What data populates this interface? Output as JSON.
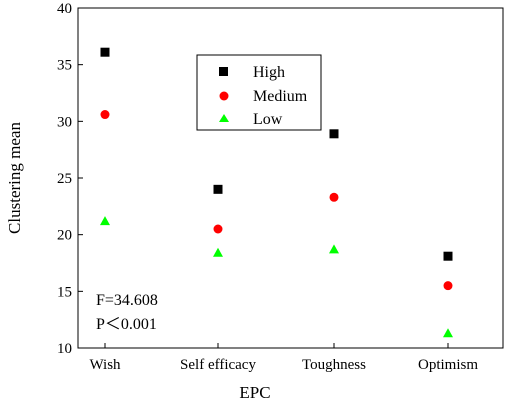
{
  "chart_data": {
    "type": "scatter",
    "xlabel": "EPC",
    "ylabel": "Clustering mean",
    "categories": [
      "Wish",
      "Self efficacy",
      "Toughness",
      "Optimism"
    ],
    "ylim": [
      10,
      40
    ],
    "yticks": [
      10,
      15,
      20,
      25,
      30,
      35,
      40
    ],
    "grid": false,
    "legend_position": "top-center",
    "series": [
      {
        "name": "High",
        "marker": "square",
        "color": "#000000",
        "values": [
          36.1,
          24.0,
          28.9,
          18.1
        ]
      },
      {
        "name": "Medium",
        "marker": "circle",
        "color": "#ff0000",
        "values": [
          30.6,
          20.5,
          23.3,
          15.5
        ]
      },
      {
        "name": "Low",
        "marker": "triangle",
        "color": "#00ff00",
        "values": [
          21.2,
          18.4,
          18.7,
          11.3
        ]
      }
    ],
    "annotations": [
      "F=34.608",
      "P＜0.001"
    ]
  }
}
